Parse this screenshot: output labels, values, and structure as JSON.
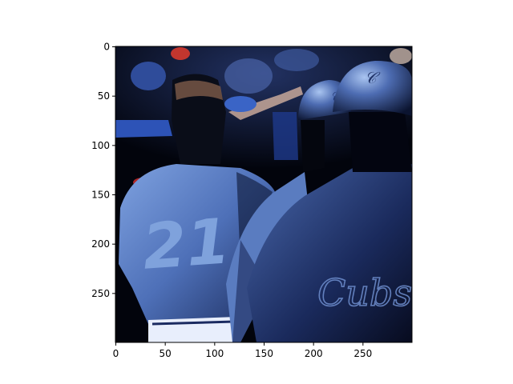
{
  "figure": {
    "image_description": "",
    "jersey_number": "21",
    "jersey_script": "Cubs",
    "axes": {
      "x_ticks": [
        0,
        50,
        100,
        150,
        200,
        250
      ],
      "y_ticks": [
        0,
        50,
        100,
        150,
        200,
        250
      ],
      "x_range": [
        0,
        300
      ],
      "y_range": [
        0,
        300
      ],
      "y_inverted": true
    },
    "colors": {
      "background": "#ffffff",
      "image_dark": "#02040c",
      "jersey_blue": "#5b7fc2",
      "helmet_blue": "#3e5fa6",
      "highlight_blue": "#a9c4f0"
    }
  }
}
